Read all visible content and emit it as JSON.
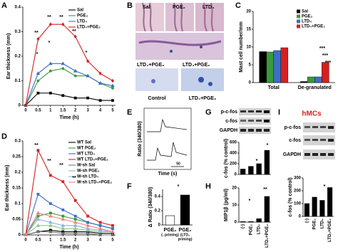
{
  "chart_data": [
    {
      "type": "line",
      "ylabel": "Ear thickness (mm)",
      "xlabel": "Time (h)",
      "categories": [
        "0",
        "0.5",
        "1",
        "1.5",
        "2",
        "3",
        "4",
        "5"
      ],
      "ylim": [
        0,
        0.4
      ],
      "yticks": [
        0,
        0.1,
        0.2,
        0.3,
        0.4
      ],
      "series": [
        {
          "name": "Sal",
          "color": "#000000",
          "marker": "square",
          "values": [
            0,
            0.05,
            0.05,
            0.04,
            0.03,
            0.03,
            0.02,
            0.02
          ]
        },
        {
          "name": "PGE₂",
          "color": "#3a9a3a",
          "marker": "circle",
          "values": [
            0,
            0.1,
            0.14,
            0.15,
            0.12,
            0.12,
            0.09,
            0.07
          ]
        },
        {
          "name": "LTD₄",
          "color": "#3a6fc4",
          "marker": "triangle",
          "values": [
            0,
            0.13,
            0.17,
            0.17,
            0.14,
            0.12,
            0.09,
            0.08
          ]
        },
        {
          "name": "LTD₄+PGE₂",
          "color": "#d62020",
          "marker": "diamond",
          "values": [
            0,
            0.27,
            0.33,
            0.33,
            0.28,
            0.18,
            0.13,
            0.1
          ]
        }
      ],
      "annotations": [
        "**",
        "**",
        "**",
        "**",
        "*",
        "*",
        "*"
      ]
    },
    {
      "type": "bar",
      "ylabel": "Mast cell number/mm",
      "categories": [
        "Total",
        "De-granulated"
      ],
      "ylim": [
        0,
        20
      ],
      "yticks": [
        0,
        5,
        10,
        15,
        20
      ],
      "series": [
        {
          "name": "Sal",
          "color": "#000000",
          "values": [
            8.7,
            0.3
          ]
        },
        {
          "name": "PGE₂",
          "color": "#3a9a3a",
          "values": [
            8.6,
            1.6
          ]
        },
        {
          "name": "LTD₄",
          "color": "#3a6fc4",
          "values": [
            9,
            1.6
          ]
        },
        {
          "name": "LTD₄+PGE₂",
          "color": "#d62020",
          "values": [
            9.8,
            5.7
          ]
        }
      ],
      "annotations": [
        "***",
        "***",
        "***"
      ]
    },
    {
      "type": "line",
      "ylabel": "Ear thickness (mm)",
      "xlabel": "Time (h)",
      "categories": [
        "0",
        "0.5",
        "1",
        "1.5",
        "2",
        "3",
        "4",
        "5"
      ],
      "ylim": [
        0,
        0.3
      ],
      "yticks": [
        0,
        0.05,
        0.1,
        0.15,
        0.2,
        0.25,
        0.3
      ],
      "series": [
        {
          "name": "WT Sal",
          "color": "#000000",
          "marker": "square",
          "values": [
            0,
            0.01,
            0.015,
            0.01,
            0.01,
            0.01,
            0.005,
            0.005
          ]
        },
        {
          "name": "WT PGE₂",
          "color": "#3a9a3a",
          "marker": "square",
          "values": [
            0,
            0.06,
            0.07,
            0.06,
            0.05,
            0.04,
            0.03,
            0.02
          ]
        },
        {
          "name": "WT LTD₄",
          "color": "#3a6fc4",
          "marker": "square",
          "values": [
            0,
            0.13,
            0.1,
            0.08,
            0.06,
            0.04,
            0.03,
            0.02
          ]
        },
        {
          "name": "WT LTD₄+PGE₂",
          "color": "#d62020",
          "marker": "square",
          "values": [
            0,
            0.27,
            0.19,
            0.17,
            0.11,
            0.06,
            0.04,
            0.03
          ]
        },
        {
          "name": "W-sh Sal",
          "color": "#777777",
          "marker": "triangle",
          "values": [
            0,
            0.01,
            0.01,
            0.005,
            0.005,
            0.005,
            0,
            0
          ]
        },
        {
          "name": "W-sh PGE₂",
          "color": "#8cc88c",
          "marker": "triangle",
          "values": [
            0,
            0.03,
            0.03,
            0.02,
            0.02,
            0.015,
            0.01,
            0.01
          ]
        },
        {
          "name": "W-sh LTD₄",
          "color": "#8fb0e0",
          "marker": "triangle",
          "values": [
            0,
            0.05,
            0.04,
            0.03,
            0.03,
            0.02,
            0.015,
            0.01
          ]
        },
        {
          "name": "W-sh LTD₄+PGE₂",
          "color": "#f08080",
          "marker": "triangle",
          "values": [
            0,
            0.07,
            0.06,
            0.05,
            0.04,
            0.03,
            0.02,
            0.01
          ]
        }
      ],
      "annotations": [
        "**",
        "**",
        "**",
        "**"
      ]
    },
    {
      "type": "bar",
      "ylabel": "Δ Ratio (340/380)",
      "categories": [
        "PGE₂",
        "PGE₂"
      ],
      "category_notes": [
        [
          "(- priming)"
        ],
        [
          "(LTD₄",
          "priming)"
        ]
      ],
      "values": [
        0.13,
        0.42
      ],
      "colors": [
        "#ffffff",
        "#000000"
      ],
      "ylim": [
        0,
        0.5
      ],
      "yticks": [
        0,
        0.2,
        0.4
      ],
      "annotations": [
        "*"
      ]
    },
    {
      "type": "bar",
      "ylabel": "c-fos (% control)",
      "categories": [
        null,
        null,
        null,
        null
      ],
      "values": [
        100,
        150,
        200,
        450
      ],
      "color": "#000000",
      "ylim": [
        0,
        600
      ],
      "yticks": [
        0,
        200,
        400,
        600
      ],
      "annotations": [
        "*",
        "*"
      ]
    },
    {
      "type": "bar",
      "ylabel": "MIP1β (pg/ml)",
      "categories": [
        "(-)",
        "PGE₂",
        "LTD₄",
        "LTD₄+PGE₂"
      ],
      "values": [
        0.3,
        0.3,
        2,
        15
      ],
      "color": "#000000",
      "ylim": [
        0,
        20
      ],
      "yticks": [
        0,
        10,
        20
      ],
      "annotations": [
        "*",
        "**"
      ]
    },
    {
      "type": "bar",
      "ylabel": "c-fos (% control)",
      "categories": [
        "(-)",
        "PGE₂",
        "LTD₄",
        "LTD₄+PGE₂"
      ],
      "values": [
        100,
        150,
        125,
        225
      ],
      "color": "#000000",
      "ylim": [
        0,
        300
      ],
      "yticks": [
        0,
        100,
        200,
        300
      ],
      "annotations": [
        "*",
        "*"
      ]
    }
  ],
  "figure": {
    "letters": [
      "A",
      "B",
      "C",
      "D",
      "E",
      "F",
      "G",
      "H",
      "I"
    ],
    "panel_b": {
      "top_labels": [
        "Sal",
        "PGE₂",
        "LTD₄"
      ],
      "mid_labels": [
        "LTD₄+PGE₂",
        "LTD₄+PGE₂"
      ],
      "bottom_labels": [
        "Control",
        "LTD₄+PGE₂"
      ]
    },
    "panel_e": {
      "ylabel": "Ratio (340/380)",
      "xlabel": "Time (s)",
      "scale": "50"
    },
    "blots_g": [
      "p-c-fos",
      "c-fos",
      "GAPDH"
    ],
    "blots_i": [
      "p-c-fos",
      "c-fos",
      "GAPDH"
    ],
    "title_i": "hMCs"
  }
}
